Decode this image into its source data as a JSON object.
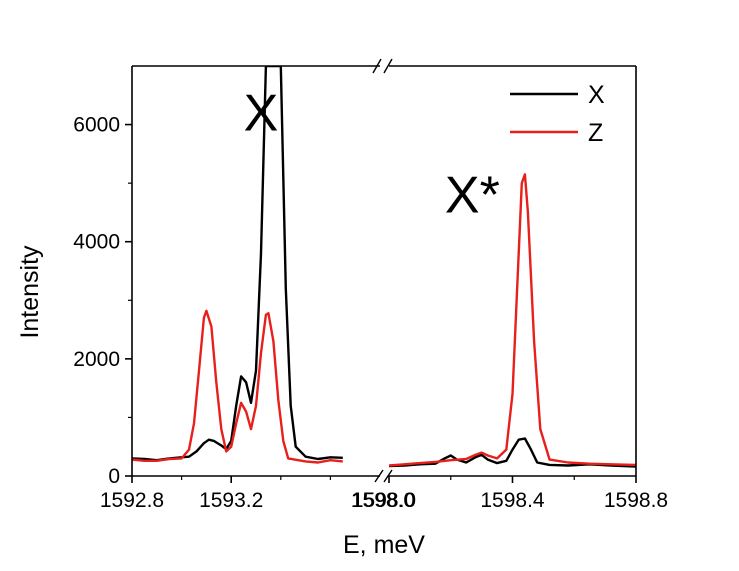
{
  "chart_data": {
    "type": "line",
    "xlabel": "E, meV",
    "ylabel": "Intensity",
    "ylim": [
      0,
      7000
    ],
    "yticks": [
      0,
      2000,
      4000,
      6000
    ],
    "y_minor_step": 1000,
    "x_break": true,
    "panels": [
      {
        "xlim": [
          1592.8,
          1593.8
        ],
        "xticks": [
          1592.8,
          1593.2
        ],
        "xtick_labels": [
          "1592.8",
          "1593.2"
        ]
      },
      {
        "xlim": [
          1598.0,
          1598.8
        ],
        "xticks": [
          1598.0,
          1598.4,
          1598.8
        ],
        "xtick_labels": [
          "1598.0",
          "1598.4",
          "1598.8"
        ]
      }
    ],
    "break_tick_label": "1598.0",
    "annotations": [
      {
        "text": "X",
        "panel": 0,
        "x": 1593.32,
        "y": 5900
      },
      {
        "text": "X*",
        "panel": 1,
        "x": 1598.27,
        "y": 4500
      }
    ],
    "legend": {
      "position": "top-right"
    },
    "series": [
      {
        "name": "X",
        "color": "#000000",
        "segments": [
          [
            [
              1592.8,
              300
            ],
            [
              1592.85,
              290
            ],
            [
              1592.9,
              270
            ],
            [
              1592.95,
              300
            ],
            [
              1593.0,
              320
            ],
            [
              1593.03,
              330
            ],
            [
              1593.06,
              420
            ],
            [
              1593.09,
              560
            ],
            [
              1593.11,
              620
            ],
            [
              1593.13,
              600
            ],
            [
              1593.16,
              520
            ],
            [
              1593.18,
              460
            ],
            [
              1593.2,
              600
            ],
            [
              1593.22,
              1200
            ],
            [
              1593.24,
              1700
            ],
            [
              1593.26,
              1600
            ],
            [
              1593.28,
              1250
            ],
            [
              1593.3,
              1800
            ],
            [
              1593.32,
              3800
            ],
            [
              1593.34,
              7000
            ],
            [
              1593.4,
              7000
            ],
            [
              1593.42,
              3200
            ],
            [
              1593.44,
              1200
            ],
            [
              1593.46,
              500
            ],
            [
              1593.5,
              330
            ],
            [
              1593.55,
              290
            ],
            [
              1593.6,
              320
            ],
            [
              1593.65,
              310
            ]
          ],
          [
            [
              1598.0,
              170
            ],
            [
              1598.05,
              180
            ],
            [
              1598.1,
              200
            ],
            [
              1598.15,
              210
            ],
            [
              1598.18,
              300
            ],
            [
              1598.2,
              350
            ],
            [
              1598.22,
              280
            ],
            [
              1598.25,
              230
            ],
            [
              1598.28,
              320
            ],
            [
              1598.3,
              360
            ],
            [
              1598.32,
              280
            ],
            [
              1598.35,
              220
            ],
            [
              1598.38,
              260
            ],
            [
              1598.4,
              450
            ],
            [
              1598.42,
              620
            ],
            [
              1598.44,
              640
            ],
            [
              1598.46,
              450
            ],
            [
              1598.48,
              230
            ],
            [
              1598.52,
              190
            ],
            [
              1598.58,
              180
            ],
            [
              1598.65,
              200
            ],
            [
              1598.72,
              180
            ],
            [
              1598.8,
              160
            ]
          ]
        ]
      },
      {
        "name": "Z",
        "color": "#e8201b",
        "segments": [
          [
            [
              1592.8,
              280
            ],
            [
              1592.85,
              260
            ],
            [
              1592.9,
              260
            ],
            [
              1592.95,
              290
            ],
            [
              1593.0,
              300
            ],
            [
              1593.03,
              450
            ],
            [
              1593.05,
              900
            ],
            [
              1593.07,
              1800
            ],
            [
              1593.09,
              2700
            ],
            [
              1593.1,
              2820
            ],
            [
              1593.12,
              2550
            ],
            [
              1593.14,
              1600
            ],
            [
              1593.16,
              800
            ],
            [
              1593.18,
              420
            ],
            [
              1593.2,
              500
            ],
            [
              1593.22,
              900
            ],
            [
              1593.24,
              1250
            ],
            [
              1593.26,
              1100
            ],
            [
              1593.28,
              800
            ],
            [
              1593.3,
              1200
            ],
            [
              1593.32,
              2100
            ],
            [
              1593.34,
              2750
            ],
            [
              1593.35,
              2780
            ],
            [
              1593.37,
              2300
            ],
            [
              1593.39,
              1300
            ],
            [
              1593.41,
              600
            ],
            [
              1593.43,
              300
            ],
            [
              1593.5,
              250
            ],
            [
              1593.55,
              230
            ],
            [
              1593.6,
              270
            ],
            [
              1593.65,
              250
            ]
          ],
          [
            [
              1598.0,
              180
            ],
            [
              1598.05,
              200
            ],
            [
              1598.1,
              220
            ],
            [
              1598.15,
              240
            ],
            [
              1598.2,
              270
            ],
            [
              1598.25,
              290
            ],
            [
              1598.28,
              360
            ],
            [
              1598.3,
              400
            ],
            [
              1598.32,
              350
            ],
            [
              1598.35,
              300
            ],
            [
              1598.38,
              450
            ],
            [
              1598.4,
              1400
            ],
            [
              1598.42,
              3800
            ],
            [
              1598.43,
              5000
            ],
            [
              1598.44,
              5150
            ],
            [
              1598.45,
              4500
            ],
            [
              1598.47,
              2300
            ],
            [
              1598.49,
              800
            ],
            [
              1598.52,
              280
            ],
            [
              1598.58,
              230
            ],
            [
              1598.65,
              210
            ],
            [
              1598.72,
              200
            ],
            [
              1598.8,
              190
            ]
          ]
        ]
      }
    ]
  }
}
